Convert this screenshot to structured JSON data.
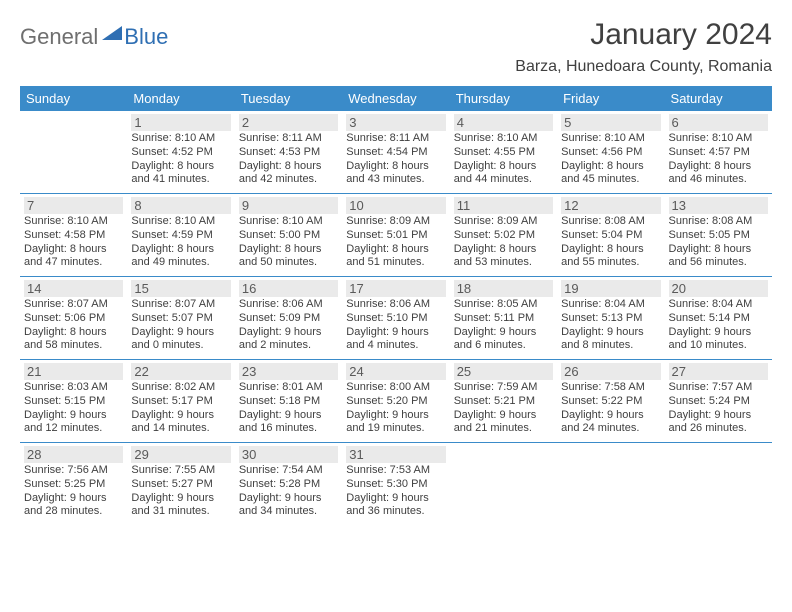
{
  "logo": {
    "part1": "General",
    "part2": "Blue"
  },
  "title": "January 2024",
  "location": "Barza, Hunedoara County, Romania",
  "colors": {
    "header_bg": "#3a8bc9",
    "header_fg": "#ffffff",
    "daynum_bg": "#eaeaea",
    "text": "#3f3f3f",
    "logo_gray": "#6f6f6f",
    "logo_blue": "#2f6fb3",
    "page_bg": "#ffffff"
  },
  "weekdays": [
    "Sunday",
    "Monday",
    "Tuesday",
    "Wednesday",
    "Thursday",
    "Friday",
    "Saturday"
  ],
  "weeks": [
    [
      {
        "empty": true
      },
      {
        "n": "1",
        "sr": "Sunrise: 8:10 AM",
        "ss": "Sunset: 4:52 PM",
        "dl": "Daylight: 8 hours and 41 minutes."
      },
      {
        "n": "2",
        "sr": "Sunrise: 8:11 AM",
        "ss": "Sunset: 4:53 PM",
        "dl": "Daylight: 8 hours and 42 minutes."
      },
      {
        "n": "3",
        "sr": "Sunrise: 8:11 AM",
        "ss": "Sunset: 4:54 PM",
        "dl": "Daylight: 8 hours and 43 minutes."
      },
      {
        "n": "4",
        "sr": "Sunrise: 8:10 AM",
        "ss": "Sunset: 4:55 PM",
        "dl": "Daylight: 8 hours and 44 minutes."
      },
      {
        "n": "5",
        "sr": "Sunrise: 8:10 AM",
        "ss": "Sunset: 4:56 PM",
        "dl": "Daylight: 8 hours and 45 minutes."
      },
      {
        "n": "6",
        "sr": "Sunrise: 8:10 AM",
        "ss": "Sunset: 4:57 PM",
        "dl": "Daylight: 8 hours and 46 minutes."
      }
    ],
    [
      {
        "n": "7",
        "sr": "Sunrise: 8:10 AM",
        "ss": "Sunset: 4:58 PM",
        "dl": "Daylight: 8 hours and 47 minutes."
      },
      {
        "n": "8",
        "sr": "Sunrise: 8:10 AM",
        "ss": "Sunset: 4:59 PM",
        "dl": "Daylight: 8 hours and 49 minutes."
      },
      {
        "n": "9",
        "sr": "Sunrise: 8:10 AM",
        "ss": "Sunset: 5:00 PM",
        "dl": "Daylight: 8 hours and 50 minutes."
      },
      {
        "n": "10",
        "sr": "Sunrise: 8:09 AM",
        "ss": "Sunset: 5:01 PM",
        "dl": "Daylight: 8 hours and 51 minutes."
      },
      {
        "n": "11",
        "sr": "Sunrise: 8:09 AM",
        "ss": "Sunset: 5:02 PM",
        "dl": "Daylight: 8 hours and 53 minutes."
      },
      {
        "n": "12",
        "sr": "Sunrise: 8:08 AM",
        "ss": "Sunset: 5:04 PM",
        "dl": "Daylight: 8 hours and 55 minutes."
      },
      {
        "n": "13",
        "sr": "Sunrise: 8:08 AM",
        "ss": "Sunset: 5:05 PM",
        "dl": "Daylight: 8 hours and 56 minutes."
      }
    ],
    [
      {
        "n": "14",
        "sr": "Sunrise: 8:07 AM",
        "ss": "Sunset: 5:06 PM",
        "dl": "Daylight: 8 hours and 58 minutes."
      },
      {
        "n": "15",
        "sr": "Sunrise: 8:07 AM",
        "ss": "Sunset: 5:07 PM",
        "dl": "Daylight: 9 hours and 0 minutes."
      },
      {
        "n": "16",
        "sr": "Sunrise: 8:06 AM",
        "ss": "Sunset: 5:09 PM",
        "dl": "Daylight: 9 hours and 2 minutes."
      },
      {
        "n": "17",
        "sr": "Sunrise: 8:06 AM",
        "ss": "Sunset: 5:10 PM",
        "dl": "Daylight: 9 hours and 4 minutes."
      },
      {
        "n": "18",
        "sr": "Sunrise: 8:05 AM",
        "ss": "Sunset: 5:11 PM",
        "dl": "Daylight: 9 hours and 6 minutes."
      },
      {
        "n": "19",
        "sr": "Sunrise: 8:04 AM",
        "ss": "Sunset: 5:13 PM",
        "dl": "Daylight: 9 hours and 8 minutes."
      },
      {
        "n": "20",
        "sr": "Sunrise: 8:04 AM",
        "ss": "Sunset: 5:14 PM",
        "dl": "Daylight: 9 hours and 10 minutes."
      }
    ],
    [
      {
        "n": "21",
        "sr": "Sunrise: 8:03 AM",
        "ss": "Sunset: 5:15 PM",
        "dl": "Daylight: 9 hours and 12 minutes."
      },
      {
        "n": "22",
        "sr": "Sunrise: 8:02 AM",
        "ss": "Sunset: 5:17 PM",
        "dl": "Daylight: 9 hours and 14 minutes."
      },
      {
        "n": "23",
        "sr": "Sunrise: 8:01 AM",
        "ss": "Sunset: 5:18 PM",
        "dl": "Daylight: 9 hours and 16 minutes."
      },
      {
        "n": "24",
        "sr": "Sunrise: 8:00 AM",
        "ss": "Sunset: 5:20 PM",
        "dl": "Daylight: 9 hours and 19 minutes."
      },
      {
        "n": "25",
        "sr": "Sunrise: 7:59 AM",
        "ss": "Sunset: 5:21 PM",
        "dl": "Daylight: 9 hours and 21 minutes."
      },
      {
        "n": "26",
        "sr": "Sunrise: 7:58 AM",
        "ss": "Sunset: 5:22 PM",
        "dl": "Daylight: 9 hours and 24 minutes."
      },
      {
        "n": "27",
        "sr": "Sunrise: 7:57 AM",
        "ss": "Sunset: 5:24 PM",
        "dl": "Daylight: 9 hours and 26 minutes."
      }
    ],
    [
      {
        "n": "28",
        "sr": "Sunrise: 7:56 AM",
        "ss": "Sunset: 5:25 PM",
        "dl": "Daylight: 9 hours and 28 minutes."
      },
      {
        "n": "29",
        "sr": "Sunrise: 7:55 AM",
        "ss": "Sunset: 5:27 PM",
        "dl": "Daylight: 9 hours and 31 minutes."
      },
      {
        "n": "30",
        "sr": "Sunrise: 7:54 AM",
        "ss": "Sunset: 5:28 PM",
        "dl": "Daylight: 9 hours and 34 minutes."
      },
      {
        "n": "31",
        "sr": "Sunrise: 7:53 AM",
        "ss": "Sunset: 5:30 PM",
        "dl": "Daylight: 9 hours and 36 minutes."
      },
      {
        "empty": true
      },
      {
        "empty": true
      },
      {
        "empty": true
      }
    ]
  ]
}
